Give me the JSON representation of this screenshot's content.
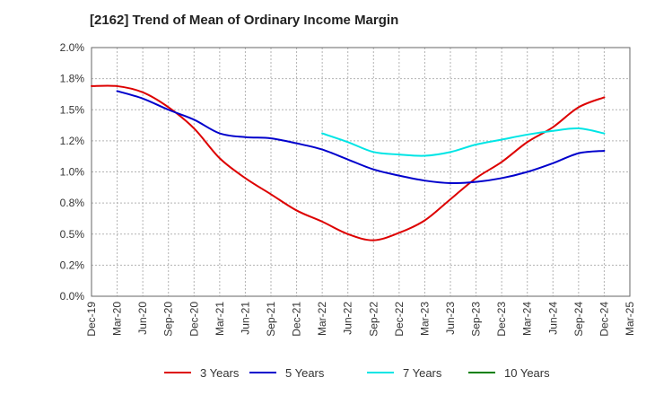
{
  "chart_data": {
    "type": "line",
    "title": "[2162]  Trend of Mean of Ordinary Income Margin",
    "xlabel": "",
    "ylabel": "",
    "x_ticks": [
      "Dec-19",
      "Mar-20",
      "Jun-20",
      "Sep-20",
      "Dec-20",
      "Mar-21",
      "Jun-21",
      "Sep-21",
      "Dec-21",
      "Mar-22",
      "Jun-22",
      "Sep-22",
      "Dec-22",
      "Mar-23",
      "Jun-23",
      "Sep-23",
      "Dec-23",
      "Mar-24",
      "Jun-24",
      "Sep-24",
      "Dec-24",
      "Mar-25"
    ],
    "y_ticks": [
      "0.0%",
      "0.2%",
      "0.5%",
      "0.8%",
      "1.0%",
      "1.2%",
      "1.5%",
      "1.8%",
      "2.0%"
    ],
    "ylim": [
      0.0,
      2.0
    ],
    "grid": true,
    "legend_position": "bottom",
    "series": [
      {
        "name": "3 Years",
        "color": "#dd0000",
        "x": [
          "Dec-19",
          "Mar-20",
          "Jun-20",
          "Sep-20",
          "Dec-20",
          "Mar-21",
          "Jun-21",
          "Sep-21",
          "Dec-21",
          "Mar-22",
          "Jun-22",
          "Sep-22",
          "Dec-22",
          "Mar-23",
          "Jun-23",
          "Sep-23",
          "Dec-23",
          "Mar-24",
          "Jun-24",
          "Sep-24",
          "Dec-24"
        ],
        "values": [
          1.69,
          1.69,
          1.64,
          1.52,
          1.35,
          1.11,
          0.95,
          0.82,
          0.69,
          0.6,
          0.5,
          0.45,
          0.51,
          0.61,
          0.78,
          0.95,
          1.08,
          1.24,
          1.36,
          1.52,
          1.6
        ]
      },
      {
        "name": "5 Years",
        "color": "#0000cc",
        "x": [
          "Mar-20",
          "Jun-20",
          "Sep-20",
          "Dec-20",
          "Mar-21",
          "Jun-21",
          "Sep-21",
          "Dec-21",
          "Mar-22",
          "Jun-22",
          "Sep-22",
          "Dec-22",
          "Mar-23",
          "Jun-23",
          "Sep-23",
          "Dec-23",
          "Mar-24",
          "Jun-24",
          "Sep-24",
          "Dec-24"
        ],
        "values": [
          1.65,
          1.59,
          1.5,
          1.42,
          1.31,
          1.28,
          1.27,
          1.23,
          1.18,
          1.1,
          1.02,
          0.97,
          0.93,
          0.91,
          0.92,
          0.95,
          1.0,
          1.07,
          1.15,
          1.17
        ]
      },
      {
        "name": "7 Years",
        "color": "#00e5e5",
        "x": [
          "Mar-22",
          "Jun-22",
          "Sep-22",
          "Dec-22",
          "Mar-23",
          "Jun-23",
          "Sep-23",
          "Dec-23",
          "Mar-24",
          "Jun-24",
          "Sep-24",
          "Dec-24"
        ],
        "values": [
          1.31,
          1.24,
          1.16,
          1.14,
          1.13,
          1.16,
          1.22,
          1.26,
          1.3,
          1.33,
          1.35,
          1.31
        ]
      },
      {
        "name": "10 Years",
        "color": "#008000",
        "x": [],
        "values": []
      }
    ]
  }
}
